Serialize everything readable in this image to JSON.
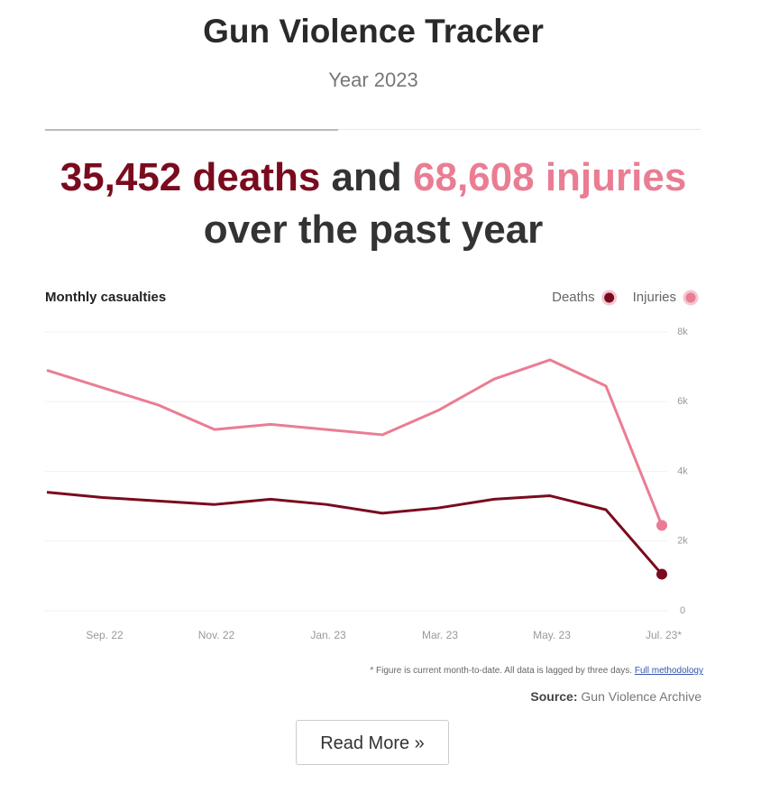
{
  "header": {
    "title": "Gun Violence Tracker",
    "subtitle": "Year 2023"
  },
  "headline": {
    "deaths": "35,452 deaths",
    "connector": "and",
    "injuries": "68,608 injuries",
    "rest": "over the past year"
  },
  "chart_data": {
    "type": "line",
    "title": "Monthly casualties",
    "categories": [
      null,
      "Sep. 22",
      null,
      "Nov. 22",
      null,
      "Jan. 23",
      null,
      "Mar. 23",
      null,
      "May. 23",
      null,
      "Jul. 23*"
    ],
    "series": [
      {
        "name": "Deaths",
        "color": "#7a0b1e",
        "values": [
          3400,
          3250,
          3150,
          3050,
          3200,
          3050,
          2800,
          2950,
          3200,
          3300,
          2900,
          1050
        ]
      },
      {
        "name": "Injuries",
        "color": "#ea7d93",
        "values": [
          6900,
          6400,
          5900,
          5200,
          5350,
          5200,
          5050,
          5750,
          6650,
          7200,
          6450,
          2450
        ]
      }
    ],
    "ylim": [
      0,
      8000
    ],
    "yticks": [
      0,
      {
        "value": 2000,
        "label": "2k"
      },
      {
        "value": 4000,
        "label": "4k"
      },
      {
        "value": 6000,
        "label": "6k"
      },
      {
        "value": 8000,
        "label": "8k"
      }
    ],
    "grid": true,
    "legend": "top-right"
  },
  "footer": {
    "note": "* Figure is current month-to-date. All data is lagged by three days.",
    "link": "Full methodology",
    "source_label": "Source:",
    "source": "Gun Violence Archive",
    "button": "Read More »"
  }
}
